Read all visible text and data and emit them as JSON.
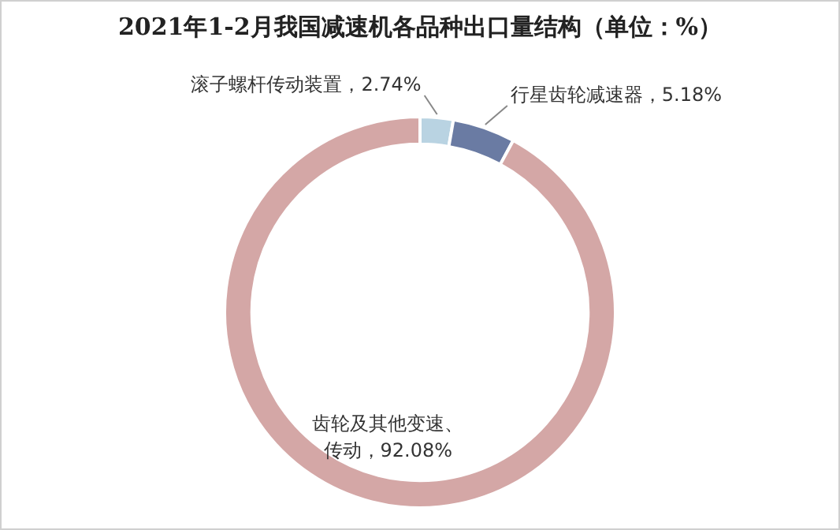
{
  "chart_data": {
    "type": "donut",
    "title": "2021年1-2月我国减速机各品种出口量结构（单位：%）",
    "categories": [
      "滚子螺杆传动装置",
      "行星齿轮减速器",
      "齿轮及其他变速、传动"
    ],
    "values": [
      2.74,
      5.18,
      92.08
    ],
    "colors": [
      "#b9d3e2",
      "#6a7ba3",
      "#d4a7a6"
    ],
    "value_labels": [
      "2.74%",
      "5.18%",
      "92.08%"
    ],
    "legend": false
  }
}
